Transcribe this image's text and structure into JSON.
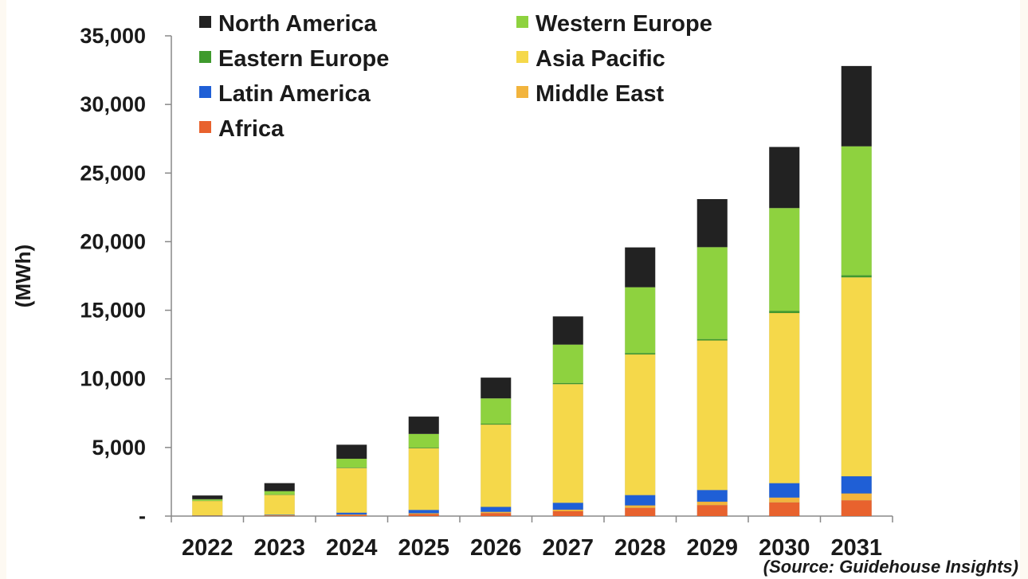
{
  "source_note": "(Source: Guidehouse Insights)",
  "chart_data": {
    "type": "bar",
    "stacked": true,
    "title": "",
    "xlabel": "",
    "ylabel": "(MWh)",
    "ylim": [
      0,
      35000
    ],
    "yticks": [
      0,
      5000,
      10000,
      15000,
      20000,
      25000,
      30000,
      35000
    ],
    "ytick_labels": [
      "-",
      "5,000",
      "10,000",
      "15,000",
      "20,000",
      "25,000",
      "30,000",
      "35,000"
    ],
    "grid": false,
    "legend_position": "top-left",
    "categories": [
      "2022",
      "2023",
      "2024",
      "2025",
      "2026",
      "2027",
      "2028",
      "2029",
      "2030",
      "2031"
    ],
    "series": [
      {
        "name": "Africa",
        "color": "#e8622e",
        "values": [
          20,
          40,
          80,
          150,
          220,
          350,
          600,
          800,
          1000,
          1150
        ]
      },
      {
        "name": "Middle East",
        "color": "#f2b43d",
        "values": [
          10,
          20,
          40,
          60,
          90,
          120,
          180,
          250,
          350,
          500
        ]
      },
      {
        "name": "Latin America",
        "color": "#1f5fd6",
        "values": [
          20,
          40,
          130,
          240,
          360,
          500,
          750,
          850,
          1050,
          1250
        ]
      },
      {
        "name": "Asia Pacific",
        "color": "#f5d84a",
        "values": [
          1050,
          1450,
          3250,
          4500,
          6000,
          8650,
          10250,
          10900,
          12400,
          14500
        ]
      },
      {
        "name": "Eastern Europe",
        "color": "#3f9a2d",
        "values": [
          10,
          20,
          30,
          40,
          60,
          80,
          100,
          100,
          150,
          150
        ]
      },
      {
        "name": "Western Europe",
        "color": "#8ed23f",
        "values": [
          120,
          250,
          650,
          1000,
          1850,
          2800,
          4800,
          6700,
          7500,
          9400
        ]
      },
      {
        "name": "North America",
        "color": "#222222",
        "values": [
          270,
          580,
          1020,
          1260,
          1510,
          2050,
          2900,
          3500,
          4450,
          5850
        ]
      }
    ],
    "legend": [
      "North America",
      "Western Europe",
      "Eastern Europe",
      "Asia Pacific",
      "Latin America",
      "Middle East",
      "Africa"
    ]
  }
}
